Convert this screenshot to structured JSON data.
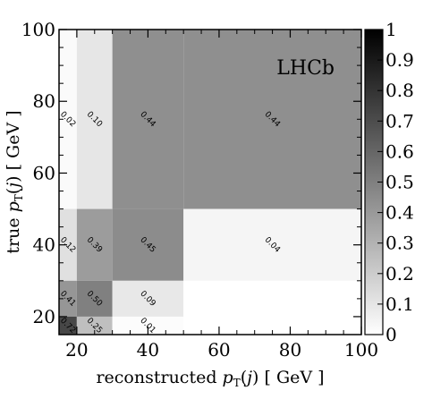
{
  "chart_data": {
    "type": "heatmap",
    "annotation": "LHCb",
    "xlabel": "reconstructed p_T(j) [GeV]",
    "ylabel": "true p_T(j) [GeV]",
    "xlim": [
      15,
      100
    ],
    "ylim": [
      15,
      100
    ],
    "x_ticks": [
      "20",
      "40",
      "60",
      "80",
      "100"
    ],
    "y_ticks": [
      "20",
      "40",
      "60",
      "80",
      "100"
    ],
    "x_bin_edges": [
      15,
      20,
      30,
      50,
      100
    ],
    "y_bin_edges": [
      15,
      20,
      30,
      50,
      100
    ],
    "colorbar": {
      "min": 0,
      "max": 1,
      "ticks": [
        "0",
        "0.1",
        "0.2",
        "0.3",
        "0.4",
        "0.5",
        "0.6",
        "0.7",
        "0.8",
        "0.9",
        "1"
      ]
    },
    "cells": [
      {
        "x": 0,
        "y": 3,
        "value": 0.02,
        "label": "0.02"
      },
      {
        "x": 1,
        "y": 3,
        "value": 0.1,
        "label": "0.10"
      },
      {
        "x": 2,
        "y": 3,
        "value": 0.44,
        "label": "0.44"
      },
      {
        "x": 3,
        "y": 3,
        "value": 0.44,
        "label": "0.44"
      },
      {
        "x": 0,
        "y": 2,
        "value": 0.12,
        "label": "0.12"
      },
      {
        "x": 1,
        "y": 2,
        "value": 0.39,
        "label": "0.39"
      },
      {
        "x": 2,
        "y": 2,
        "value": 0.45,
        "label": "0.45"
      },
      {
        "x": 3,
        "y": 2,
        "value": 0.04,
        "label": "0.04"
      },
      {
        "x": 0,
        "y": 1,
        "value": 0.41,
        "label": "0.41"
      },
      {
        "x": 1,
        "y": 1,
        "value": 0.5,
        "label": "0.50"
      },
      {
        "x": 2,
        "y": 1,
        "value": 0.09,
        "label": "0.09"
      },
      {
        "x": 3,
        "y": 1,
        "value": 0.0,
        "label": ""
      },
      {
        "x": 0,
        "y": 0,
        "value": 0.72,
        "label": "0.72"
      },
      {
        "x": 1,
        "y": 0,
        "value": 0.25,
        "label": "0.25"
      },
      {
        "x": 2,
        "y": 0,
        "value": 0.01,
        "label": "0.01"
      },
      {
        "x": 3,
        "y": 0,
        "value": 0.0,
        "label": ""
      }
    ]
  }
}
